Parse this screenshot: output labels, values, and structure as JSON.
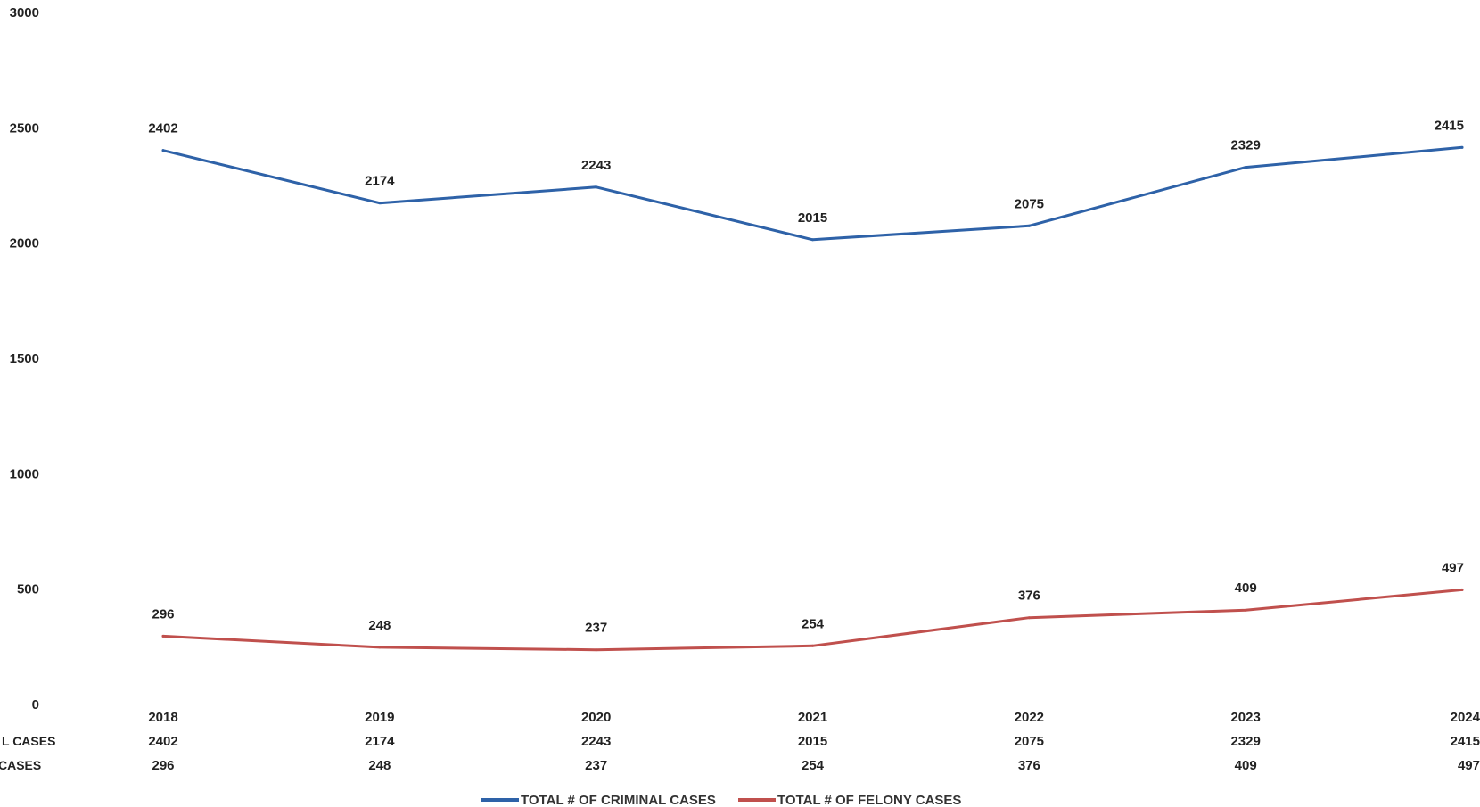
{
  "chart_data": {
    "type": "line",
    "categories": [
      "2018",
      "2019",
      "2020",
      "2021",
      "2022",
      "2023",
      "2024"
    ],
    "series": [
      {
        "name": "TOTAL # OF CRIMINAL CASES",
        "values": [
          2402,
          2174,
          2243,
          2015,
          2075,
          2329,
          2415
        ],
        "color": "#2e62a8"
      },
      {
        "name": "TOTAL # OF FELONY CASES",
        "values": [
          296,
          248,
          237,
          254,
          376,
          409,
          497
        ],
        "color": "#c0504d"
      }
    ],
    "ylim": [
      0,
      3000
    ],
    "yticks": [
      0,
      500,
      1000,
      1500,
      2000,
      2500,
      3000
    ],
    "grid": false,
    "legend": "bottom",
    "table_row_labels": [
      "L CASES",
      "CASES"
    ]
  }
}
